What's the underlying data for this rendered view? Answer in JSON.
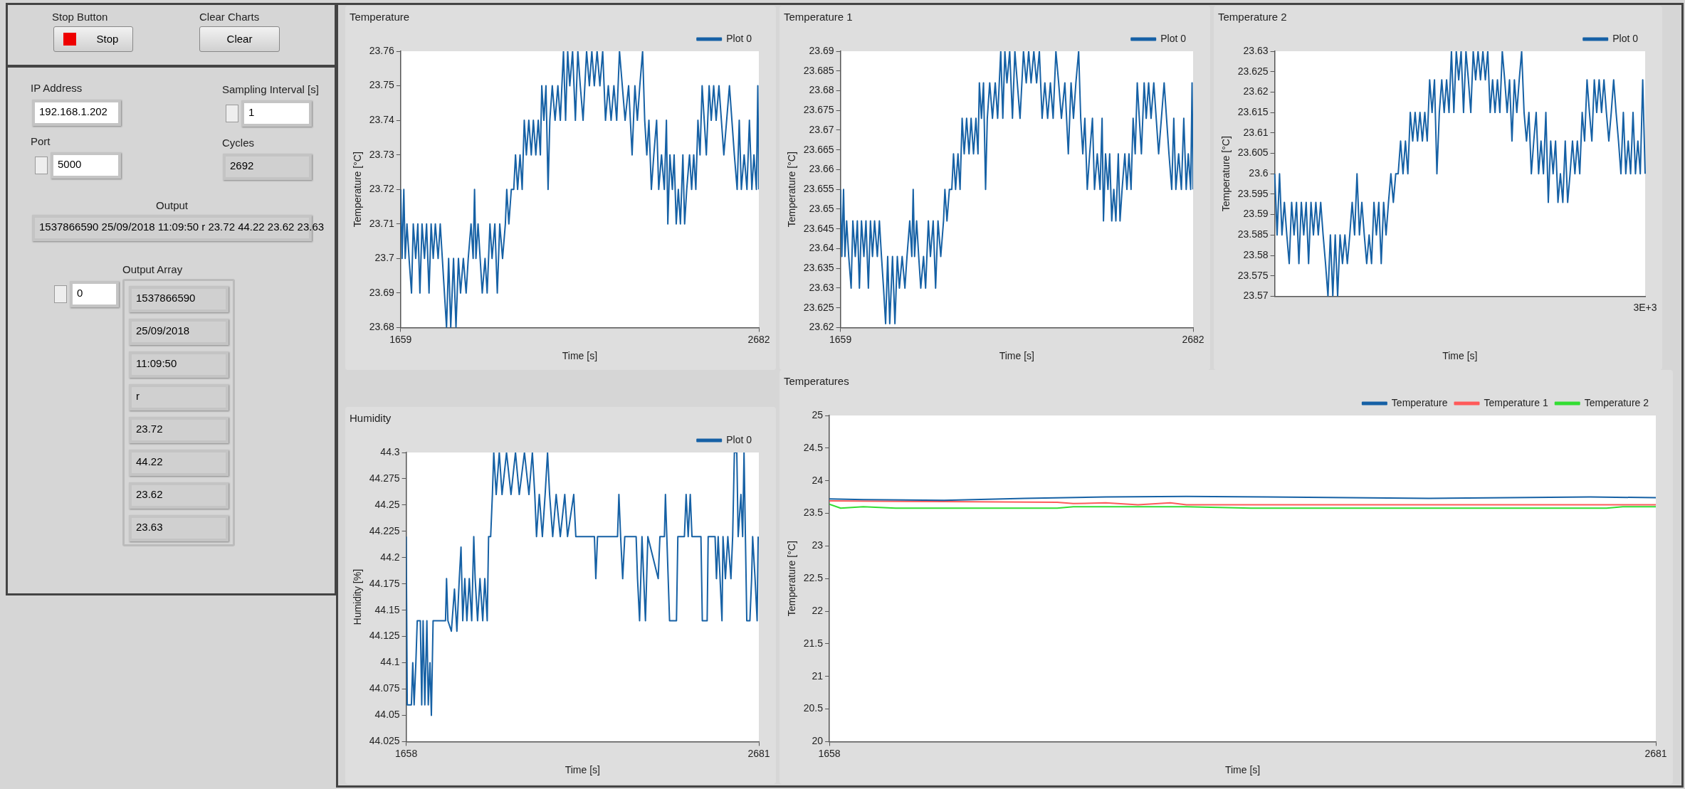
{
  "chart_data": [
    {
      "type": "other",
      "annotations": [
        "Stop Button",
        "Stop",
        "Clear Charts",
        "Clear",
        "IP Address",
        "192.168.1.202",
        "Sampling Interval [s]",
        "1",
        "Port",
        "5000",
        "Cycles",
        "2692",
        "Output",
        "1537866590 25/09/2018 11:09:50 r 23.72 44.22 23.62 23.63",
        "Output Array",
        "0",
        "1537866590",
        "25/09/2018",
        "11:09:50",
        "r",
        "23.72",
        "44.22",
        "23.62",
        "23.63"
      ]
    },
    {
      "type": "line",
      "title": "Temperature",
      "xlabel": "Time [s]",
      "ylabel": "Temperature [°C]",
      "legend": "top right",
      "marker": "none",
      "grid": false,
      "xlim": [
        1659,
        2682
      ],
      "xticks": [
        1659,
        2682
      ],
      "ylim": [
        23.68,
        23.76
      ],
      "yticks": [
        23.68,
        23.69,
        23.7,
        23.71,
        23.72,
        23.73,
        23.74,
        23.75,
        23.76
      ],
      "x": [
        1659,
        1663,
        1668,
        1672,
        1677,
        1683,
        1690,
        1695,
        1702,
        1708,
        1714,
        1720,
        1727,
        1733,
        1740,
        1746,
        1752,
        1758,
        1766,
        1772,
        1778,
        1784,
        1790,
        1796,
        1802,
        1810,
        1817,
        1824,
        1830,
        1838,
        1846,
        1852,
        1860,
        1866,
        1870,
        1874,
        1880,
        1886,
        1892,
        1900,
        1906,
        1914,
        1920,
        1928,
        1935,
        1942,
        1950,
        1958,
        1962,
        1968,
        1975,
        1982,
        1987,
        1993,
        2000,
        2006,
        2012,
        2018,
        2025,
        2032,
        2038,
        2045,
        2052,
        2058,
        2062,
        2068,
        2074,
        2080,
        2085,
        2092,
        2100,
        2108,
        2115,
        2124,
        2130,
        2136,
        2142,
        2150,
        2158,
        2165,
        2172,
        2180,
        2190,
        2198,
        2205,
        2212,
        2220,
        2228,
        2236,
        2244,
        2252,
        2260,
        2268,
        2276,
        2284,
        2292,
        2300,
        2310,
        2320,
        2328,
        2335,
        2342,
        2350,
        2356,
        2362,
        2368,
        2375,
        2382,
        2390,
        2396,
        2404,
        2412,
        2418,
        2422,
        2428,
        2435,
        2440,
        2446,
        2452,
        2458,
        2465,
        2470,
        2476,
        2484,
        2490,
        2496,
        2502,
        2508,
        2514,
        2520,
        2526,
        2532,
        2540,
        2546,
        2553,
        2560,
        2568,
        2575,
        2582,
        2590,
        2598,
        2605,
        2612,
        2620,
        2626,
        2632,
        2640,
        2648,
        2655,
        2662,
        2668,
        2675,
        2679,
        2682
      ],
      "series": [
        {
          "name": "Plot 0",
          "color": "#1661a5",
          "values": [
            23.72,
            23.7,
            23.72,
            23.7,
            23.71,
            23.7,
            23.69,
            23.71,
            23.7,
            23.71,
            23.69,
            23.71,
            23.7,
            23.71,
            23.69,
            23.71,
            23.7,
            23.71,
            23.7,
            23.71,
            23.7,
            23.69,
            23.68,
            23.7,
            23.68,
            23.7,
            23.68,
            23.7,
            23.69,
            23.7,
            23.69,
            23.7,
            23.71,
            23.7,
            23.72,
            23.7,
            23.71,
            23.7,
            23.69,
            23.7,
            23.69,
            23.71,
            23.7,
            23.71,
            23.69,
            23.71,
            23.7,
            23.71,
            23.72,
            23.71,
            23.72,
            23.72,
            23.73,
            23.72,
            23.73,
            23.72,
            23.74,
            23.73,
            23.74,
            23.73,
            23.74,
            23.73,
            23.74,
            23.73,
            23.75,
            23.74,
            23.75,
            23.72,
            23.74,
            23.75,
            23.74,
            23.75,
            23.74,
            23.76,
            23.74,
            23.76,
            23.75,
            23.76,
            23.74,
            23.76,
            23.75,
            23.74,
            23.76,
            23.75,
            23.76,
            23.75,
            23.76,
            23.75,
            23.76,
            23.74,
            23.75,
            23.74,
            23.75,
            23.74,
            23.76,
            23.75,
            23.74,
            23.75,
            23.73,
            23.75,
            23.74,
            23.75,
            23.76,
            23.74,
            23.73,
            23.74,
            23.72,
            23.73,
            23.74,
            23.72,
            23.73,
            23.72,
            23.74,
            23.71,
            23.73,
            23.72,
            23.73,
            23.71,
            23.72,
            23.71,
            23.73,
            23.71,
            23.72,
            23.73,
            23.72,
            23.73,
            23.72,
            23.74,
            23.73,
            23.75,
            23.74,
            23.73,
            23.75,
            23.74,
            23.75,
            23.74,
            23.75,
            23.74,
            23.73,
            23.74,
            23.75,
            23.74,
            23.73,
            23.72,
            23.74,
            23.72,
            23.73,
            23.72,
            23.74,
            23.72,
            23.73,
            23.72,
            23.75,
            23.72
          ]
        }
      ]
    },
    {
      "type": "line",
      "title": "Temperature 1",
      "xlabel": "Time [s]",
      "ylabel": "Temperature [°C]",
      "legend": "top right",
      "marker": "none",
      "grid": false,
      "xlim": [
        1659,
        2682
      ],
      "xticks": [
        1659,
        2682
      ],
      "ylim": [
        23.62,
        23.69
      ],
      "yticks": [
        23.62,
        23.625,
        23.63,
        23.635,
        23.64,
        23.645,
        23.65,
        23.655,
        23.66,
        23.665,
        23.67,
        23.675,
        23.68,
        23.685,
        23.69
      ],
      "x": [
        1659,
        1663,
        1668,
        1672,
        1677,
        1683,
        1690,
        1695,
        1702,
        1708,
        1714,
        1720,
        1727,
        1733,
        1740,
        1746,
        1752,
        1758,
        1766,
        1772,
        1778,
        1784,
        1790,
        1796,
        1802,
        1810,
        1817,
        1824,
        1830,
        1838,
        1846,
        1852,
        1860,
        1866,
        1870,
        1874,
        1880,
        1886,
        1892,
        1900,
        1906,
        1914,
        1920,
        1928,
        1935,
        1942,
        1950,
        1958,
        1962,
        1968,
        1975,
        1982,
        1987,
        1993,
        2000,
        2006,
        2012,
        2018,
        2025,
        2032,
        2038,
        2045,
        2052,
        2058,
        2062,
        2068,
        2074,
        2080,
        2085,
        2092,
        2100,
        2108,
        2115,
        2124,
        2130,
        2136,
        2142,
        2150,
        2158,
        2165,
        2172,
        2180,
        2190,
        2198,
        2205,
        2212,
        2220,
        2228,
        2236,
        2244,
        2252,
        2260,
        2268,
        2276,
        2284,
        2292,
        2300,
        2310,
        2320,
        2328,
        2335,
        2342,
        2350,
        2356,
        2362,
        2368,
        2375,
        2382,
        2390,
        2396,
        2404,
        2412,
        2418,
        2422,
        2428,
        2435,
        2440,
        2446,
        2452,
        2458,
        2465,
        2470,
        2476,
        2484,
        2490,
        2496,
        2502,
        2508,
        2514,
        2520,
        2526,
        2532,
        2540,
        2546,
        2553,
        2560,
        2568,
        2575,
        2582,
        2590,
        2598,
        2605,
        2612,
        2620,
        2626,
        2632,
        2640,
        2648,
        2655,
        2662,
        2668,
        2675,
        2679,
        2682
      ],
      "series": [
        {
          "name": "Plot 0",
          "color": "#1661a5",
          "values": [
            23.655,
            23.638,
            23.655,
            23.638,
            23.647,
            23.638,
            23.63,
            23.647,
            23.638,
            23.647,
            23.63,
            23.647,
            23.638,
            23.647,
            23.63,
            23.647,
            23.638,
            23.647,
            23.638,
            23.647,
            23.638,
            23.63,
            23.621,
            23.638,
            23.621,
            23.638,
            23.621,
            23.638,
            23.63,
            23.638,
            23.63,
            23.638,
            23.647,
            23.638,
            23.655,
            23.638,
            23.647,
            23.638,
            23.63,
            23.638,
            23.63,
            23.647,
            23.638,
            23.647,
            23.63,
            23.647,
            23.638,
            23.647,
            23.655,
            23.647,
            23.655,
            23.655,
            23.664,
            23.655,
            23.664,
            23.655,
            23.673,
            23.664,
            23.673,
            23.664,
            23.673,
            23.664,
            23.673,
            23.664,
            23.682,
            23.673,
            23.682,
            23.655,
            23.673,
            23.682,
            23.673,
            23.682,
            23.673,
            23.69,
            23.673,
            23.69,
            23.682,
            23.69,
            23.673,
            23.69,
            23.682,
            23.673,
            23.69,
            23.682,
            23.69,
            23.682,
            23.69,
            23.682,
            23.69,
            23.673,
            23.682,
            23.673,
            23.682,
            23.673,
            23.69,
            23.682,
            23.673,
            23.682,
            23.664,
            23.682,
            23.673,
            23.682,
            23.69,
            23.673,
            23.664,
            23.673,
            23.655,
            23.664,
            23.673,
            23.655,
            23.664,
            23.655,
            23.673,
            23.647,
            23.664,
            23.655,
            23.664,
            23.647,
            23.655,
            23.647,
            23.664,
            23.647,
            23.655,
            23.664,
            23.655,
            23.664,
            23.655,
            23.673,
            23.664,
            23.682,
            23.673,
            23.664,
            23.682,
            23.673,
            23.682,
            23.673,
            23.682,
            23.673,
            23.664,
            23.673,
            23.682,
            23.673,
            23.664,
            23.655,
            23.673,
            23.655,
            23.664,
            23.655,
            23.673,
            23.655,
            23.664,
            23.655,
            23.682,
            23.655
          ]
        }
      ]
    },
    {
      "type": "line",
      "title": "Temperature 2",
      "xlabel": "Time [s]",
      "ylabel": "Temperature [°C]",
      "legend": "top right",
      "marker": "none",
      "grid": false,
      "annotations": [
        "3E+3"
      ],
      "ylim": [
        23.57,
        23.63
      ],
      "yticks": [
        23.57,
        23.575,
        23.58,
        23.585,
        23.59,
        23.595,
        23.6,
        23.605,
        23.61,
        23.615,
        23.62,
        23.625,
        23.63
      ],
      "categories": [
        null,
        null,
        null,
        null,
        null,
        null,
        null,
        null,
        null,
        null,
        null,
        null,
        null,
        null,
        null,
        null,
        null,
        null,
        null,
        null,
        null,
        null,
        null,
        null,
        null,
        null,
        null,
        null,
        null,
        null,
        null,
        null,
        null,
        null,
        null,
        null,
        null,
        null,
        null,
        null,
        null,
        null,
        null,
        null,
        null,
        null,
        null,
        null,
        null,
        null,
        null,
        null,
        null,
        null,
        null,
        null,
        null,
        null,
        null,
        null,
        null,
        null,
        null,
        null,
        null,
        null,
        null,
        null,
        null,
        null,
        null,
        null,
        null,
        null,
        null,
        null,
        null,
        null,
        null,
        null,
        null,
        null,
        null,
        null,
        null,
        null,
        null,
        null,
        null,
        null,
        null,
        null,
        null,
        null,
        null,
        null,
        null,
        null,
        null,
        null,
        null,
        null,
        null,
        null,
        null,
        null,
        null,
        null,
        null,
        null,
        null,
        null,
        null,
        null,
        null,
        null,
        null,
        null,
        null,
        null,
        null,
        null,
        null,
        null,
        null,
        null,
        null,
        null,
        null,
        null,
        null,
        null,
        null,
        null,
        null,
        null,
        null,
        null,
        null,
        null,
        null,
        null,
        null,
        null,
        null,
        null,
        null,
        null,
        null,
        null,
        null,
        null,
        null,
        null
      ],
      "series": [
        {
          "name": "Plot 0",
          "color": "#1661a5",
          "values": [
            23.6,
            23.585,
            23.6,
            23.585,
            23.593,
            23.585,
            23.578,
            23.593,
            23.585,
            23.593,
            23.578,
            23.593,
            23.585,
            23.593,
            23.578,
            23.593,
            23.585,
            23.593,
            23.585,
            23.593,
            23.585,
            23.578,
            23.57,
            23.585,
            23.57,
            23.585,
            23.57,
            23.585,
            23.578,
            23.585,
            23.578,
            23.585,
            23.593,
            23.585,
            23.6,
            23.585,
            23.593,
            23.585,
            23.578,
            23.585,
            23.578,
            23.593,
            23.585,
            23.593,
            23.578,
            23.593,
            23.585,
            23.593,
            23.6,
            23.593,
            23.6,
            23.6,
            23.608,
            23.6,
            23.608,
            23.6,
            23.615,
            23.608,
            23.615,
            23.608,
            23.615,
            23.608,
            23.615,
            23.608,
            23.623,
            23.615,
            23.623,
            23.6,
            23.615,
            23.623,
            23.615,
            23.623,
            23.615,
            23.63,
            23.615,
            23.63,
            23.623,
            23.63,
            23.615,
            23.63,
            23.623,
            23.615,
            23.63,
            23.623,
            23.63,
            23.623,
            23.63,
            23.623,
            23.63,
            23.615,
            23.623,
            23.615,
            23.623,
            23.615,
            23.63,
            23.623,
            23.615,
            23.623,
            23.608,
            23.623,
            23.615,
            23.623,
            23.63,
            23.615,
            23.608,
            23.615,
            23.6,
            23.608,
            23.615,
            23.6,
            23.608,
            23.6,
            23.615,
            23.593,
            23.608,
            23.6,
            23.608,
            23.593,
            23.6,
            23.593,
            23.608,
            23.593,
            23.6,
            23.608,
            23.6,
            23.608,
            23.6,
            23.615,
            23.608,
            23.623,
            23.615,
            23.608,
            23.623,
            23.615,
            23.623,
            23.615,
            23.623,
            23.615,
            23.608,
            23.615,
            23.623,
            23.615,
            23.608,
            23.6,
            23.615,
            23.6,
            23.608,
            23.6,
            23.615,
            23.6,
            23.608,
            23.6,
            23.623,
            23.6
          ]
        }
      ]
    },
    {
      "type": "line",
      "title": "Humidity",
      "xlabel": "Time [s]",
      "ylabel": "Humidity [%]",
      "legend": "top right",
      "marker": "none",
      "grid": false,
      "xlim": [
        1658,
        2681
      ],
      "xticks": [
        1658,
        2681
      ],
      "ylim": [
        44.025,
        44.3
      ],
      "yticks": [
        44.025,
        44.05,
        44.075,
        44.1,
        44.125,
        44.15,
        44.175,
        44.2,
        44.225,
        44.25,
        44.275,
        44.3
      ],
      "x": [
        1658,
        1661,
        1673,
        1677,
        1681,
        1686,
        1690,
        1699,
        1703,
        1707,
        1712,
        1718,
        1722,
        1727,
        1731,
        1736,
        1772,
        1775,
        1779,
        1789,
        1798,
        1805,
        1812,
        1817,
        1822,
        1828,
        1834,
        1841,
        1848,
        1854,
        1858,
        1865,
        1872,
        1880,
        1886,
        1893,
        1897,
        1903,
        1908,
        1912,
        1919,
        1928,
        1936,
        1949,
        1962,
        1975,
        1986,
        2001,
        2014,
        2024,
        2031,
        2036,
        2044,
        2053,
        2061,
        2068,
        2074,
        2083,
        2093,
        2105,
        2118,
        2126,
        2144,
        2150,
        2204,
        2208,
        2213,
        2271,
        2275,
        2280,
        2286,
        2292,
        2325,
        2329,
        2335,
        2342,
        2352,
        2359,
        2389,
        2394,
        2407,
        2410,
        2414,
        2422,
        2442,
        2446,
        2465,
        2470,
        2476,
        2482,
        2487,
        2513,
        2517,
        2531,
        2534,
        2554,
        2558,
        2563,
        2574,
        2577,
        2584,
        2591,
        2600,
        2605,
        2610,
        2617,
        2621,
        2629,
        2634,
        2638,
        2646,
        2655,
        2660,
        2663,
        2670,
        2676,
        2679
      ],
      "series": [
        {
          "name": "Plot 0",
          "color": "#1661a5",
          "values": [
            44.22,
            44.06,
            44.06,
            44.1,
            44.06,
            44.1,
            44.14,
            44.14,
            44.06,
            44.14,
            44.06,
            44.14,
            44.06,
            44.1,
            44.05,
            44.14,
            44.14,
            44.18,
            44.14,
            44.13,
            44.17,
            44.13,
            44.18,
            44.21,
            44.14,
            44.18,
            44.14,
            44.18,
            44.14,
            44.22,
            44.18,
            44.14,
            44.18,
            44.14,
            44.18,
            44.14,
            44.22,
            44.22,
            44.26,
            44.3,
            44.26,
            44.3,
            44.26,
            44.3,
            44.26,
            44.3,
            44.26,
            44.3,
            44.26,
            44.3,
            44.26,
            44.22,
            44.26,
            44.22,
            44.26,
            44.3,
            44.26,
            44.22,
            44.26,
            44.22,
            44.26,
            44.22,
            44.26,
            44.22,
            44.22,
            44.18,
            44.22,
            44.22,
            44.26,
            44.22,
            44.18,
            44.22,
            44.22,
            44.18,
            44.14,
            44.22,
            44.14,
            44.22,
            44.18,
            44.22,
            44.22,
            44.26,
            44.22,
            44.14,
            44.14,
            44.22,
            44.22,
            44.26,
            44.22,
            44.26,
            44.22,
            44.22,
            44.14,
            44.14,
            44.22,
            44.22,
            44.18,
            44.22,
            44.14,
            44.22,
            44.18,
            44.22,
            44.18,
            44.22,
            44.3,
            44.3,
            44.22,
            44.26,
            44.22,
            44.3,
            44.14,
            44.14,
            44.18,
            44.22,
            44.18,
            44.14,
            44.22
          ]
        }
      ]
    },
    {
      "type": "line",
      "title": "Temperatures",
      "xlabel": "Time [s]",
      "ylabel": "Temperature [°C]",
      "legend": "top right",
      "marker": "none",
      "grid": false,
      "xlim": [
        1658,
        2681
      ],
      "xticks": [
        1658,
        2681
      ],
      "ylim": [
        20,
        25
      ],
      "yticks": [
        20,
        20.5,
        21,
        21.5,
        22,
        22.5,
        23,
        23.5,
        24,
        24.5,
        25
      ],
      "series": [
        {
          "name": "Temperature",
          "color": "#1661a5",
          "x": [
            1658,
            1700,
            1800,
            1900,
            2000,
            2100,
            2200,
            2300,
            2400,
            2500,
            2600,
            2681
          ],
          "values": [
            23.72,
            23.71,
            23.7,
            23.73,
            23.75,
            23.76,
            23.75,
            23.74,
            23.73,
            23.74,
            23.75,
            23.74
          ]
        },
        {
          "name": "Temperature 1",
          "color": "#ff5a5a",
          "x": [
            1658,
            1800,
            1940,
            1960,
            2000,
            2040,
            2080,
            2100,
            2681
          ],
          "values": [
            23.69,
            23.68,
            23.67,
            23.65,
            23.66,
            23.63,
            23.66,
            23.63,
            23.63
          ]
        },
        {
          "name": "Temperature 2",
          "color": "#33dd33",
          "x": [
            1658,
            1672,
            1700,
            1740,
            1940,
            1960,
            2000,
            2100,
            2180,
            2620,
            2640,
            2681
          ],
          "values": [
            23.64,
            23.58,
            23.6,
            23.58,
            23.58,
            23.6,
            23.6,
            23.6,
            23.58,
            23.58,
            23.6,
            23.6
          ]
        }
      ]
    }
  ]
}
